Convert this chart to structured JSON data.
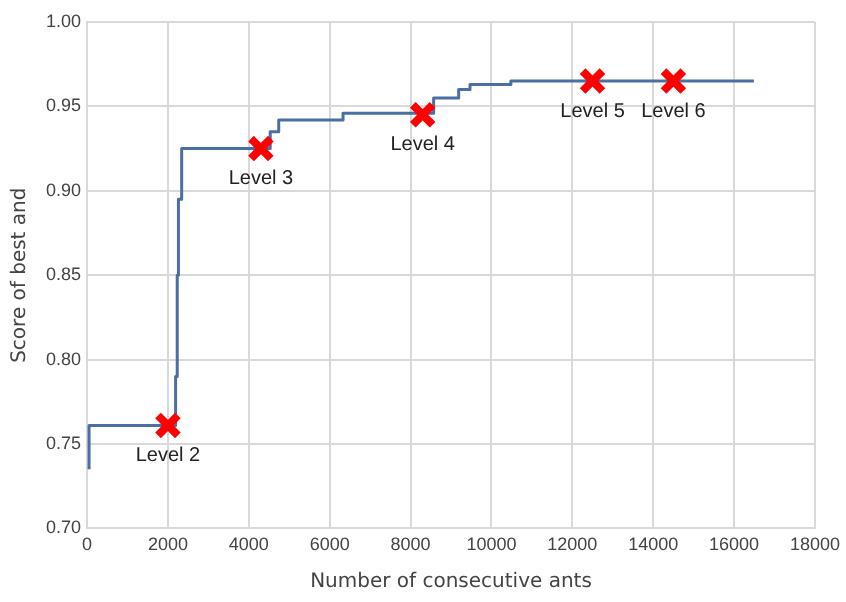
{
  "chart_data": {
    "type": "step",
    "xlabel": "Number of consecutive ants",
    "ylabel": "Score of best and",
    "xlim": [
      0,
      18000
    ],
    "xticks": [
      0,
      2000,
      4000,
      6000,
      8000,
      10000,
      12000,
      14000,
      16000,
      18000
    ],
    "ylim": [
      0.7,
      1.0
    ],
    "yticks": [
      {
        "value": 0.7,
        "label": "0.70"
      },
      {
        "value": 0.75,
        "label": "0.75"
      },
      {
        "value": 0.8,
        "label": "0.80"
      },
      {
        "value": 0.85,
        "label": "0.85"
      },
      {
        "value": 0.9,
        "label": "0.90"
      },
      {
        "value": 0.95,
        "label": "0.95"
      },
      {
        "value": 1.0,
        "label": "1.00"
      }
    ],
    "grid": true,
    "legend": false,
    "series": [
      {
        "type": "step",
        "color": "#4a6fa5",
        "marker": "none",
        "x": [
          50,
          50,
          2190,
          2230,
          2260,
          2340,
          4530,
          4740,
          6330,
          8570,
          9190,
          9470,
          10480,
          16490
        ],
        "values": [
          0.735,
          0.761,
          0.79,
          0.85,
          0.895,
          0.925,
          0.935,
          0.942,
          0.946,
          0.955,
          0.96,
          0.963,
          0.965,
          0.965
        ]
      },
      {
        "type": "scatter",
        "color": "#ff0000",
        "marker": "cross",
        "x": [
          2000,
          4300,
          8300,
          12500,
          14500
        ],
        "values": [
          0.761,
          0.925,
          0.945,
          0.965,
          0.965
        ]
      }
    ],
    "annotations": [
      {
        "text": "Level 2",
        "x": 2000,
        "y": 0.761
      },
      {
        "text": "Level 3",
        "x": 4300,
        "y": 0.925
      },
      {
        "text": "Level 4",
        "x": 8300,
        "y": 0.945
      },
      {
        "text": "Level 5",
        "x": 12500,
        "y": 0.965
      },
      {
        "text": "Level 6",
        "x": 14500,
        "y": 0.965
      }
    ]
  }
}
